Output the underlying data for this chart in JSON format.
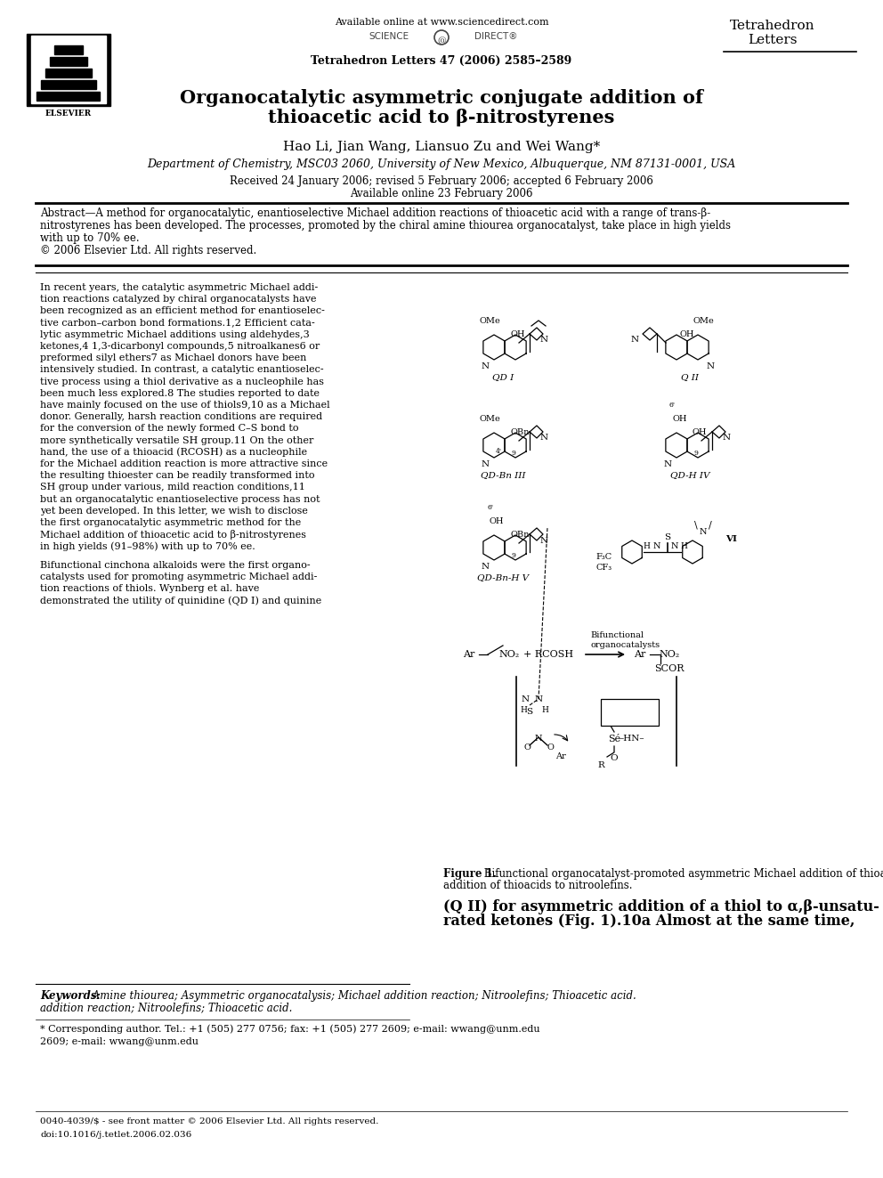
{
  "bg_color": "#ffffff",
  "page_width": 9.92,
  "page_height": 13.23,
  "header_available": "Available online at www.sciencedirect.com",
  "header_journal_bold": "Tetrahedron Letters 47 (2006) 2585–2589",
  "journal_name_line1": "Tetrahedron",
  "journal_name_line2": "Letters",
  "elsevier_text": "ELSEVIER",
  "title_line1": "Organocatalytic asymmetric conjugate addition of",
  "title_line2": "thioacetic acid to β-nitrostyrenes",
  "authors": "Hao Li, Jian Wang, Liansuo Zu and Wei Wang*",
  "affiliation": "Department of Chemistry, MSC03 2060, University of New Mexico, Albuquerque, NM 87131-0001, USA",
  "received_line1": "Received 24 January 2006; revised 5 February 2006; accepted 6 February 2006",
  "received_line2": "Available online 23 February 2006",
  "abstract_intro": "Abstract—A method for organocatalytic, enantioselective Michael addition reactions of thioacetic acid with a range of trans-β-",
  "abstract_line2": "nitrostyrenes has been developed. The processes, promoted by the chiral amine thiourea organocatalyst, take place in high yields",
  "abstract_line3": "with up to 70% ee.",
  "abstract_line4": "© 2006 Elsevier Ltd. All rights reserved.",
  "col1_lines": [
    "In recent years, the catalytic asymmetric Michael addi-",
    "tion reactions catalyzed by chiral organocatalysts have",
    "been recognized as an efficient method for enantioselec-",
    "tive carbon–carbon bond formations.1,2 Efficient cata-",
    "lytic asymmetric Michael additions using aldehydes,3",
    "ketones,4 1,3-dicarbonyl compounds,5 nitroalkanes6 or",
    "preformed silyl ethers7 as Michael donors have been",
    "intensively studied. In contrast, a catalytic enantioselec-",
    "tive process using a thiol derivative as a nucleophile has",
    "been much less explored.8 The studies reported to date",
    "have mainly focused on the use of thiols9,10 as a Michael",
    "donor. Generally, harsh reaction conditions are required",
    "for the conversion of the newly formed C–S bond to",
    "more synthetically versatile SH group.11 On the other",
    "hand, the use of a thioacid (RCOSH) as a nucleophile",
    "for the Michael addition reaction is more attractive since",
    "the resulting thioester can be readily transformed into",
    "SH group under various, mild reaction conditions,11",
    "but an organocatalytic enantioselective process has not",
    "yet been developed. In this letter, we wish to disclose",
    "the first organocatalytic asymmetric method for the",
    "Michael addition of thioacetic acid to β-nitrostyrenes",
    "in high yields (91–98%) with up to 70% ee.",
    "",
    "Bifunctional cinchona alkaloids were the first organo-",
    "catalysts used for promoting asymmetric Michael addi-",
    "tion reactions of thiols. Wynberg et al. have",
    "demonstrated the utility of quinidine (QD I) and quinine"
  ],
  "col2_lines_bottom": [
    "(Q II) for asymmetric addition of a thiol to α,β-unsatu-",
    "rated ketones (Fig. 1).10a Almost at the same time,"
  ],
  "figure_caption_bold": "Figure 1.",
  "figure_caption_rest": " Bifunctional organocatalyst-promoted asymmetric Michael addition of thioacids to nitroolefins.",
  "keywords_bold": "Keywords:",
  "keywords_italic": " Amine thiourea; Asymmetric organocatalysis; Michael addition reaction; Nitroolefins; Thioacetic acid.",
  "footnote_star": "* Corresponding author. Tel.: +1 (505) 277 0756; fax: +1 (505) 277 2609; e-mail: wwang@unm.edu",
  "footnote_copy": "0040-4039/$ - see front matter © 2006 Elsevier Ltd. All rights reserved.",
  "footnote_doi": "doi:10.1016/j.tetlet.2006.02.036"
}
